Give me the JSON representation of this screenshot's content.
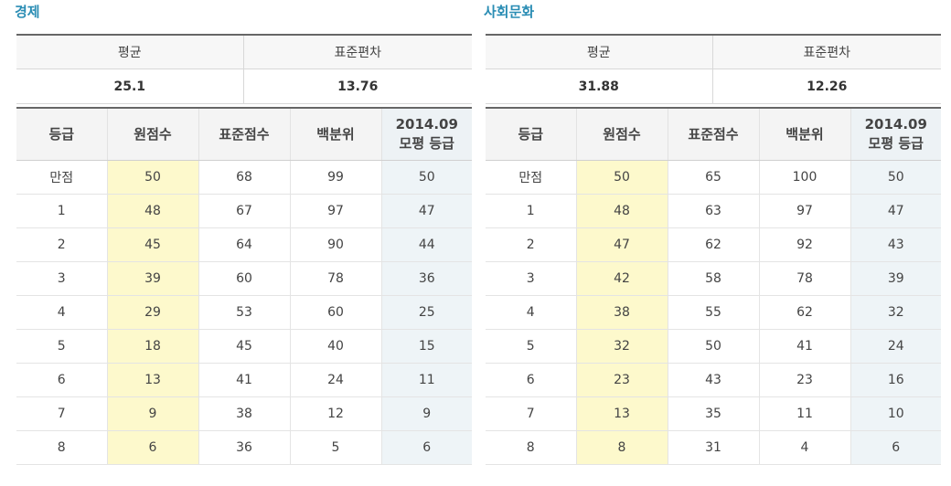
{
  "header_labels": {
    "average": "평균",
    "stdev": "표준편차",
    "grade": "등급",
    "raw": "원점수",
    "standard": "표준점수",
    "percentile": "백분위",
    "mock_line1": "2014.09",
    "mock_line2": "모평 등급"
  },
  "panels": [
    {
      "title": "경제",
      "average": "25.1",
      "stdev": "13.76",
      "rows": [
        {
          "grade": "만점",
          "raw": "50",
          "standard": "68",
          "percentile": "99",
          "mock": "50"
        },
        {
          "grade": "1",
          "raw": "48",
          "standard": "67",
          "percentile": "97",
          "mock": "47"
        },
        {
          "grade": "2",
          "raw": "45",
          "standard": "64",
          "percentile": "90",
          "mock": "44"
        },
        {
          "grade": "3",
          "raw": "39",
          "standard": "60",
          "percentile": "78",
          "mock": "36"
        },
        {
          "grade": "4",
          "raw": "29",
          "standard": "53",
          "percentile": "60",
          "mock": "25"
        },
        {
          "grade": "5",
          "raw": "18",
          "standard": "45",
          "percentile": "40",
          "mock": "15"
        },
        {
          "grade": "6",
          "raw": "13",
          "standard": "41",
          "percentile": "24",
          "mock": "11"
        },
        {
          "grade": "7",
          "raw": "9",
          "standard": "38",
          "percentile": "12",
          "mock": "9"
        },
        {
          "grade": "8",
          "raw": "6",
          "standard": "36",
          "percentile": "5",
          "mock": "6"
        }
      ]
    },
    {
      "title": "사회문화",
      "average": "31.88",
      "stdev": "12.26",
      "rows": [
        {
          "grade": "만점",
          "raw": "50",
          "standard": "65",
          "percentile": "100",
          "mock": "50"
        },
        {
          "grade": "1",
          "raw": "48",
          "standard": "63",
          "percentile": "97",
          "mock": "47"
        },
        {
          "grade": "2",
          "raw": "47",
          "standard": "62",
          "percentile": "92",
          "mock": "43"
        },
        {
          "grade": "3",
          "raw": "42",
          "standard": "58",
          "percentile": "78",
          "mock": "39"
        },
        {
          "grade": "4",
          "raw": "38",
          "standard": "55",
          "percentile": "62",
          "mock": "32"
        },
        {
          "grade": "5",
          "raw": "32",
          "standard": "50",
          "percentile": "41",
          "mock": "24"
        },
        {
          "grade": "6",
          "raw": "23",
          "standard": "43",
          "percentile": "23",
          "mock": "16"
        },
        {
          "grade": "7",
          "raw": "13",
          "standard": "35",
          "percentile": "11",
          "mock": "10"
        },
        {
          "grade": "8",
          "raw": "8",
          "standard": "31",
          "percentile": "4",
          "mock": "6"
        }
      ]
    }
  ]
}
